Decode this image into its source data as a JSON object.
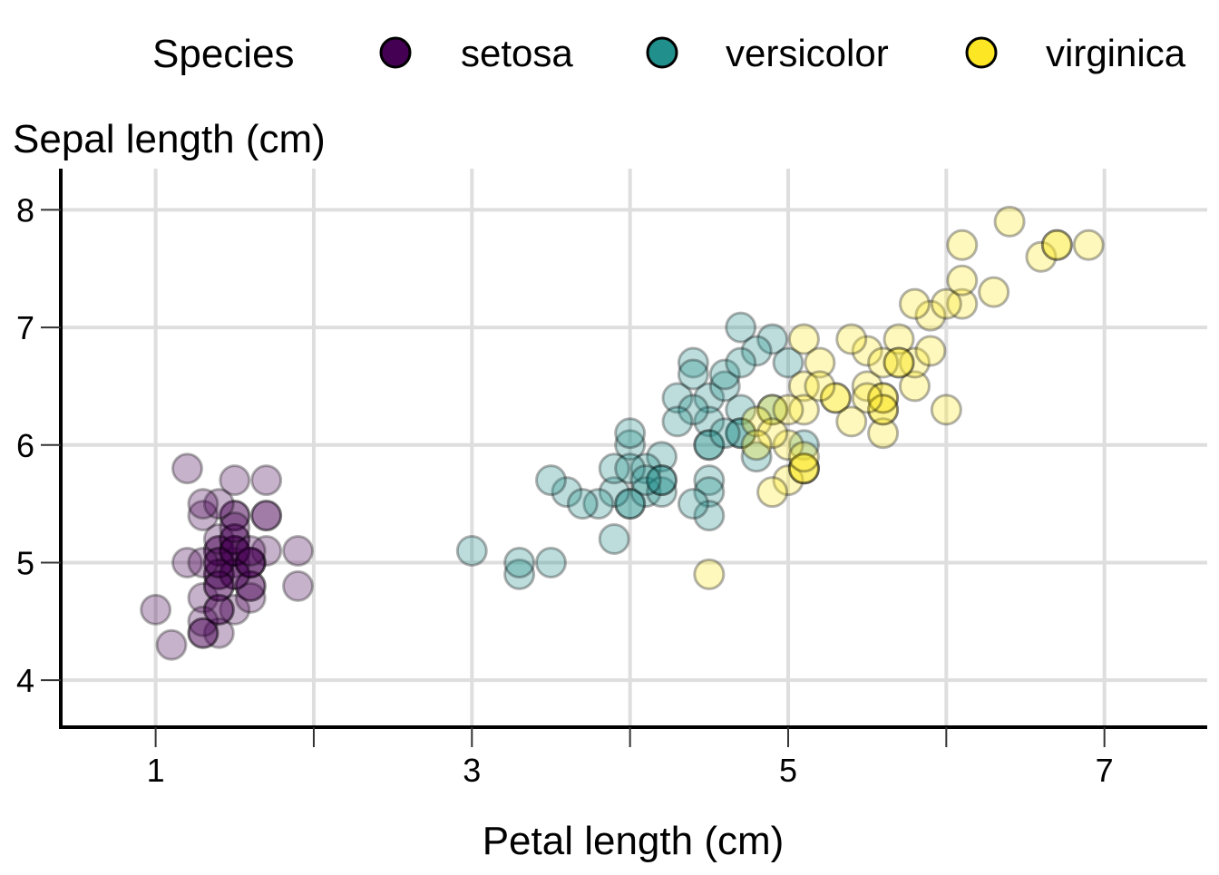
{
  "chart_data": {
    "type": "scatter",
    "title": "",
    "xlabel": "Petal length (cm)",
    "ylabel": "Sepal length (cm)",
    "xlim": [
      0.4,
      7.65
    ],
    "ylim": [
      3.6,
      8.35
    ],
    "x_ticks": [
      1,
      2,
      3,
      4,
      5,
      6,
      7
    ],
    "x_tick_labels": [
      "1",
      "",
      "3",
      "",
      "5",
      "",
      "7"
    ],
    "y_ticks": [
      4,
      5,
      6,
      7,
      8
    ],
    "y_tick_labels": [
      "4",
      "5",
      "6",
      "7",
      "8"
    ],
    "grid": true,
    "legend": {
      "title": "Species",
      "position": "top"
    },
    "series": [
      {
        "name": "setosa",
        "color": "#440154",
        "points": [
          [
            1.4,
            5.1
          ],
          [
            1.4,
            4.9
          ],
          [
            1.3,
            4.7
          ],
          [
            1.5,
            4.6
          ],
          [
            1.4,
            5.0
          ],
          [
            1.7,
            5.4
          ],
          [
            1.4,
            4.6
          ],
          [
            1.5,
            5.0
          ],
          [
            1.4,
            4.4
          ],
          [
            1.5,
            4.9
          ],
          [
            1.5,
            5.4
          ],
          [
            1.6,
            4.8
          ],
          [
            1.4,
            4.8
          ],
          [
            1.1,
            4.3
          ],
          [
            1.2,
            5.8
          ],
          [
            1.5,
            5.7
          ],
          [
            1.3,
            5.4
          ],
          [
            1.4,
            5.1
          ],
          [
            1.7,
            5.7
          ],
          [
            1.5,
            5.1
          ],
          [
            1.7,
            5.4
          ],
          [
            1.5,
            5.1
          ],
          [
            1.0,
            4.6
          ],
          [
            1.7,
            5.1
          ],
          [
            1.9,
            4.8
          ],
          [
            1.6,
            5.0
          ],
          [
            1.6,
            5.0
          ],
          [
            1.5,
            5.2
          ],
          [
            1.4,
            5.2
          ],
          [
            1.6,
            4.7
          ],
          [
            1.6,
            4.8
          ],
          [
            1.5,
            5.4
          ],
          [
            1.5,
            5.2
          ],
          [
            1.4,
            5.5
          ],
          [
            1.5,
            4.9
          ],
          [
            1.2,
            5.0
          ],
          [
            1.3,
            5.5
          ],
          [
            1.4,
            4.9
          ],
          [
            1.3,
            4.4
          ],
          [
            1.5,
            5.1
          ],
          [
            1.3,
            5.0
          ],
          [
            1.3,
            4.5
          ],
          [
            1.3,
            4.4
          ],
          [
            1.6,
            5.0
          ],
          [
            1.9,
            5.1
          ],
          [
            1.4,
            4.8
          ],
          [
            1.6,
            5.1
          ],
          [
            1.4,
            4.6
          ],
          [
            1.5,
            5.3
          ],
          [
            1.4,
            5.0
          ]
        ]
      },
      {
        "name": "versicolor",
        "color": "#21908C",
        "points": [
          [
            4.7,
            7.0
          ],
          [
            4.5,
            6.4
          ],
          [
            4.9,
            6.9
          ],
          [
            4.0,
            5.5
          ],
          [
            4.6,
            6.5
          ],
          [
            4.5,
            5.7
          ],
          [
            4.7,
            6.3
          ],
          [
            3.3,
            4.9
          ],
          [
            4.6,
            6.6
          ],
          [
            3.9,
            5.2
          ],
          [
            3.5,
            5.0
          ],
          [
            4.2,
            5.9
          ],
          [
            4.0,
            6.0
          ],
          [
            4.7,
            6.1
          ],
          [
            3.6,
            5.6
          ],
          [
            4.4,
            6.7
          ],
          [
            4.5,
            5.6
          ],
          [
            4.1,
            5.8
          ],
          [
            4.5,
            6.2
          ],
          [
            3.9,
            5.6
          ],
          [
            4.8,
            5.9
          ],
          [
            4.0,
            6.1
          ],
          [
            4.9,
            6.3
          ],
          [
            4.7,
            6.1
          ],
          [
            4.3,
            6.4
          ],
          [
            4.4,
            6.6
          ],
          [
            4.8,
            6.8
          ],
          [
            5.0,
            6.7
          ],
          [
            4.5,
            6.0
          ],
          [
            3.5,
            5.7
          ],
          [
            3.8,
            5.5
          ],
          [
            3.7,
            5.5
          ],
          [
            3.9,
            5.8
          ],
          [
            5.1,
            6.0
          ],
          [
            4.5,
            5.4
          ],
          [
            4.5,
            6.0
          ],
          [
            4.7,
            6.7
          ],
          [
            4.4,
            6.3
          ],
          [
            4.1,
            5.6
          ],
          [
            4.0,
            5.5
          ],
          [
            4.4,
            5.5
          ],
          [
            4.6,
            6.1
          ],
          [
            4.0,
            5.8
          ],
          [
            3.3,
            5.0
          ],
          [
            4.2,
            5.6
          ],
          [
            4.2,
            5.7
          ],
          [
            4.2,
            5.7
          ],
          [
            4.3,
            6.2
          ],
          [
            3.0,
            5.1
          ],
          [
            4.1,
            5.7
          ]
        ]
      },
      {
        "name": "virginica",
        "color": "#FDE725",
        "points": [
          [
            6.0,
            6.3
          ],
          [
            5.1,
            5.8
          ],
          [
            5.9,
            7.1
          ],
          [
            5.6,
            6.3
          ],
          [
            5.8,
            6.5
          ],
          [
            6.6,
            7.6
          ],
          [
            4.5,
            4.9
          ],
          [
            6.3,
            7.3
          ],
          [
            5.8,
            6.7
          ],
          [
            6.1,
            7.2
          ],
          [
            5.1,
            6.5
          ],
          [
            5.3,
            6.4
          ],
          [
            5.5,
            6.8
          ],
          [
            5.0,
            5.7
          ],
          [
            5.1,
            5.8
          ],
          [
            5.3,
            6.4
          ],
          [
            5.5,
            6.5
          ],
          [
            6.7,
            7.7
          ],
          [
            6.9,
            7.7
          ],
          [
            5.0,
            6.0
          ],
          [
            5.7,
            6.9
          ],
          [
            4.9,
            5.6
          ],
          [
            6.7,
            7.7
          ],
          [
            4.9,
            6.3
          ],
          [
            5.7,
            6.7
          ],
          [
            6.0,
            7.2
          ],
          [
            4.8,
            6.2
          ],
          [
            4.9,
            6.1
          ],
          [
            5.6,
            6.4
          ],
          [
            5.8,
            7.2
          ],
          [
            6.1,
            7.4
          ],
          [
            6.4,
            7.9
          ],
          [
            5.6,
            6.4
          ],
          [
            5.1,
            6.3
          ],
          [
            5.6,
            6.1
          ],
          [
            6.1,
            7.7
          ],
          [
            5.6,
            6.3
          ],
          [
            5.5,
            6.4
          ],
          [
            4.8,
            6.0
          ],
          [
            5.4,
            6.9
          ],
          [
            5.6,
            6.7
          ],
          [
            5.1,
            6.9
          ],
          [
            5.1,
            5.8
          ],
          [
            5.9,
            6.8
          ],
          [
            5.7,
            6.7
          ],
          [
            5.2,
            6.7
          ],
          [
            5.0,
            6.3
          ],
          [
            5.2,
            6.5
          ],
          [
            5.4,
            6.2
          ],
          [
            5.1,
            5.9
          ]
        ]
      }
    ]
  }
}
